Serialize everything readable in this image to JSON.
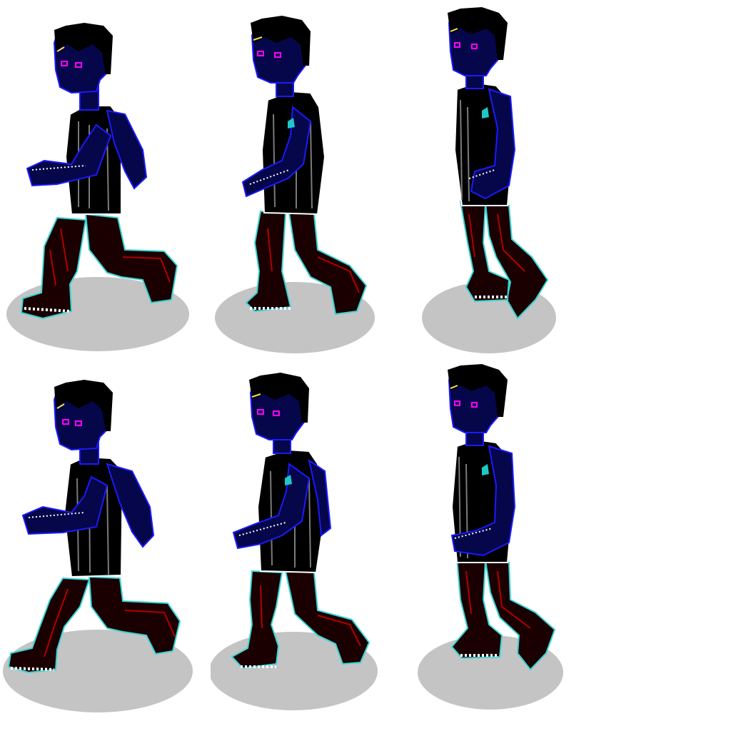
{
  "sheet": {
    "background": "#ffffff",
    "shadow_color": "#c4c4c4",
    "palette": {
      "outline": "#000000",
      "skin": "#06064a",
      "skin_edge": "#1a1aff",
      "shirt": "#000000",
      "shirt_edge": "#ffffff",
      "shirt_fold": "#7a7a7a",
      "pants": "#1a0000",
      "pants_edge": "#3ad3d3",
      "pants_fold": "#b00000",
      "shoe_sole": "#ffffff",
      "eye": "#ff00ff",
      "accent": "#f5e24a"
    },
    "frames": [
      {
        "id": "walk-1",
        "pose": "stride-wide",
        "facing": "right"
      },
      {
        "id": "walk-2",
        "pose": "stride-mid",
        "facing": "right"
      },
      {
        "id": "walk-3",
        "pose": "passing",
        "facing": "right"
      },
      {
        "id": "walk-4",
        "pose": "stride-wide",
        "facing": "right"
      },
      {
        "id": "walk-5",
        "pose": "stride-mid",
        "facing": "right"
      },
      {
        "id": "walk-6",
        "pose": "passing",
        "facing": "right"
      }
    ]
  }
}
